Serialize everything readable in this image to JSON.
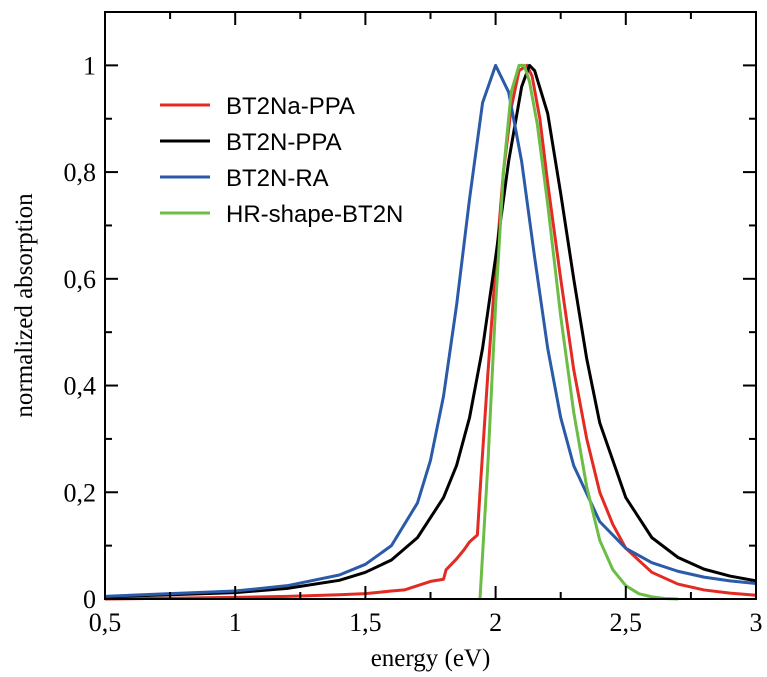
{
  "chart_data": {
    "type": "line",
    "xlabel": "energy (eV)",
    "ylabel": "normalized absorption",
    "xlim": [
      0.5,
      3.0
    ],
    "ylim": [
      0,
      1.1
    ],
    "xticks": [
      {
        "value": 0.5,
        "label": "0,5"
      },
      {
        "value": 1.0,
        "label": "1"
      },
      {
        "value": 1.5,
        "label": "1,5"
      },
      {
        "value": 2.0,
        "label": "2"
      },
      {
        "value": 2.5,
        "label": "2,5"
      },
      {
        "value": 3.0,
        "label": "3"
      }
    ],
    "yticks": [
      {
        "value": 0,
        "label": "0"
      },
      {
        "value": 0.2,
        "label": "0,2"
      },
      {
        "value": 0.4,
        "label": "0,4"
      },
      {
        "value": 0.6,
        "label": "0,6"
      },
      {
        "value": 0.8,
        "label": "0,8"
      },
      {
        "value": 1.0,
        "label": "1"
      }
    ],
    "grid": false,
    "legend_position": "upper-left",
    "series": [
      {
        "name": "BT2Na-PPA",
        "color": "#e32b23",
        "x": [
          0.5,
          1.0,
          1.2,
          1.4,
          1.5,
          1.6,
          1.65,
          1.7,
          1.75,
          1.8,
          1.81,
          1.85,
          1.88,
          1.9,
          1.93,
          1.94,
          1.97,
          2.0,
          2.03,
          2.06,
          2.09,
          2.12,
          2.14,
          2.17,
          2.2,
          2.25,
          2.3,
          2.35,
          2.4,
          2.45,
          2.5,
          2.6,
          2.7,
          2.8,
          2.9,
          3.0
        ],
        "y": [
          0.0,
          0.003,
          0.005,
          0.008,
          0.01,
          0.015,
          0.017,
          0.025,
          0.033,
          0.037,
          0.055,
          0.075,
          0.093,
          0.107,
          0.12,
          0.2,
          0.42,
          0.62,
          0.8,
          0.92,
          0.99,
          1.0,
          0.98,
          0.9,
          0.78,
          0.6,
          0.43,
          0.3,
          0.2,
          0.14,
          0.095,
          0.05,
          0.028,
          0.017,
          0.011,
          0.007
        ]
      },
      {
        "name": "BT2N-PPA",
        "color": "#000000",
        "x": [
          0.5,
          1.0,
          1.2,
          1.4,
          1.5,
          1.6,
          1.7,
          1.8,
          1.85,
          1.9,
          1.95,
          2.0,
          2.05,
          2.1,
          2.13,
          2.15,
          2.2,
          2.25,
          2.3,
          2.35,
          2.4,
          2.5,
          2.6,
          2.7,
          2.8,
          2.9,
          3.0
        ],
        "y": [
          0.004,
          0.012,
          0.02,
          0.035,
          0.05,
          0.073,
          0.115,
          0.19,
          0.25,
          0.34,
          0.47,
          0.64,
          0.82,
          0.96,
          1.0,
          0.99,
          0.91,
          0.76,
          0.6,
          0.45,
          0.33,
          0.19,
          0.115,
          0.078,
          0.056,
          0.043,
          0.034
        ]
      },
      {
        "name": "BT2N-RA",
        "color": "#2b5aa8",
        "x": [
          0.5,
          1.0,
          1.2,
          1.4,
          1.5,
          1.6,
          1.7,
          1.75,
          1.8,
          1.85,
          1.9,
          1.95,
          2.0,
          2.05,
          2.1,
          2.15,
          2.2,
          2.25,
          2.3,
          2.4,
          2.5,
          2.6,
          2.7,
          2.8,
          2.9,
          3.0
        ],
        "y": [
          0.005,
          0.015,
          0.025,
          0.045,
          0.065,
          0.1,
          0.18,
          0.26,
          0.38,
          0.55,
          0.75,
          0.93,
          1.0,
          0.95,
          0.82,
          0.64,
          0.47,
          0.34,
          0.25,
          0.145,
          0.095,
          0.068,
          0.052,
          0.041,
          0.034,
          0.029
        ]
      },
      {
        "name": "HR-shape-BT2N",
        "color": "#6cbd45",
        "x": [
          1.94,
          1.97,
          2.0,
          2.03,
          2.06,
          2.09,
          2.11,
          2.13,
          2.16,
          2.2,
          2.25,
          2.3,
          2.35,
          2.4,
          2.45,
          2.5,
          2.55,
          2.6,
          2.65,
          2.7
        ],
        "y": [
          0.0,
          0.25,
          0.55,
          0.8,
          0.95,
          1.0,
          1.0,
          0.97,
          0.89,
          0.74,
          0.53,
          0.35,
          0.21,
          0.11,
          0.055,
          0.025,
          0.01,
          0.004,
          0.001,
          0.0
        ]
      }
    ]
  }
}
